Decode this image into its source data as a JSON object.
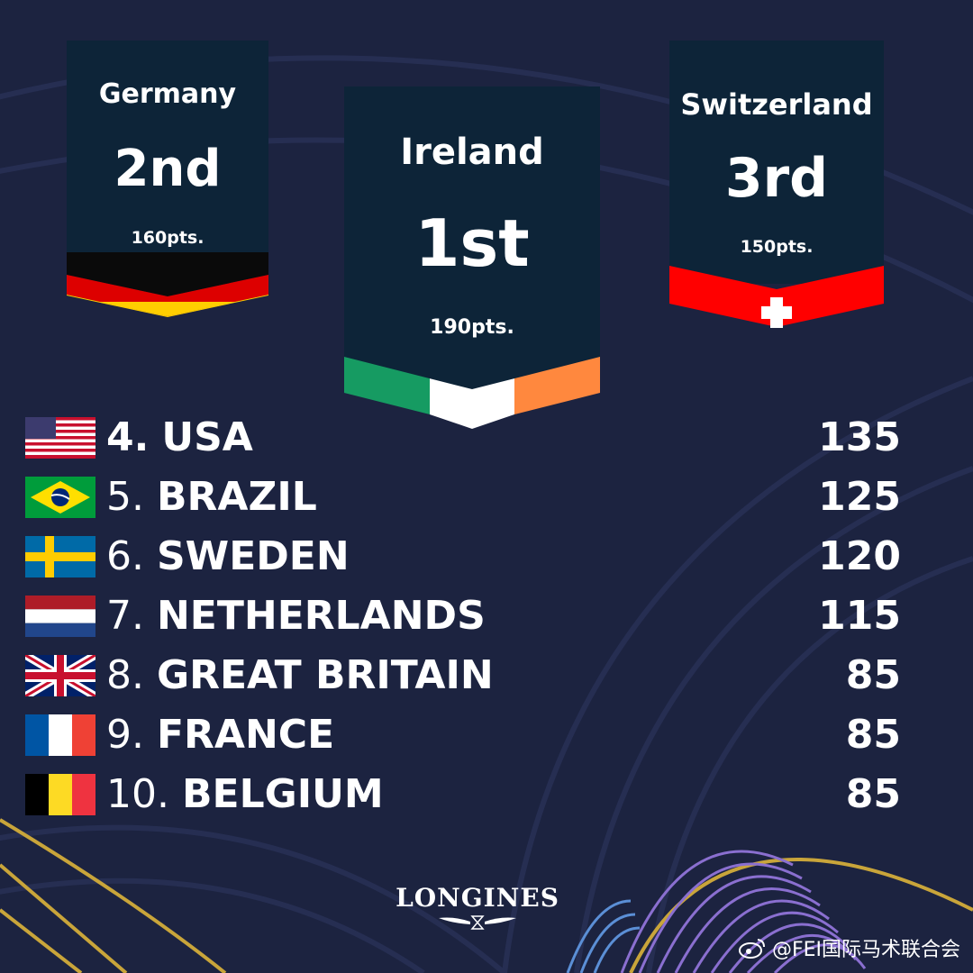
{
  "podium": {
    "first": {
      "country": "Ireland",
      "place": "1st",
      "points": "190pts."
    },
    "second": {
      "country": "Germany",
      "place": "2nd",
      "points": "160pts."
    },
    "third": {
      "country": "Switzerland",
      "place": "3rd",
      "points": "150pts."
    }
  },
  "rankings": [
    {
      "rank": "4.",
      "name": "USA",
      "score": "135",
      "flag": "usa-flag-icon"
    },
    {
      "rank": "5.",
      "name": "BRAZIL",
      "score": "125",
      "flag": "brazil-flag-icon"
    },
    {
      "rank": "6.",
      "name": "SWEDEN",
      "score": "120",
      "flag": "sweden-flag-icon"
    },
    {
      "rank": "7.",
      "name": "NETHERLANDS",
      "score": "115",
      "flag": "netherlands-flag-icon"
    },
    {
      "rank": "8.",
      "name": "GREAT BRITAIN",
      "score": "85",
      "flag": "great-britain-flag-icon"
    },
    {
      "rank": "9.",
      "name": "FRANCE",
      "score": "85",
      "flag": "france-flag-icon"
    },
    {
      "rank": "10.",
      "name": "BELGIUM",
      "score": "85",
      "flag": "belgium-flag-icon"
    }
  ],
  "logo": {
    "text": "LONGINES"
  },
  "watermark": {
    "text": "@FEI国际马术联合会"
  },
  "colors": {
    "background": "#1c2340",
    "banner": "#0d2438",
    "gold": "#c9a53a",
    "purple": "#8a6fd0"
  }
}
